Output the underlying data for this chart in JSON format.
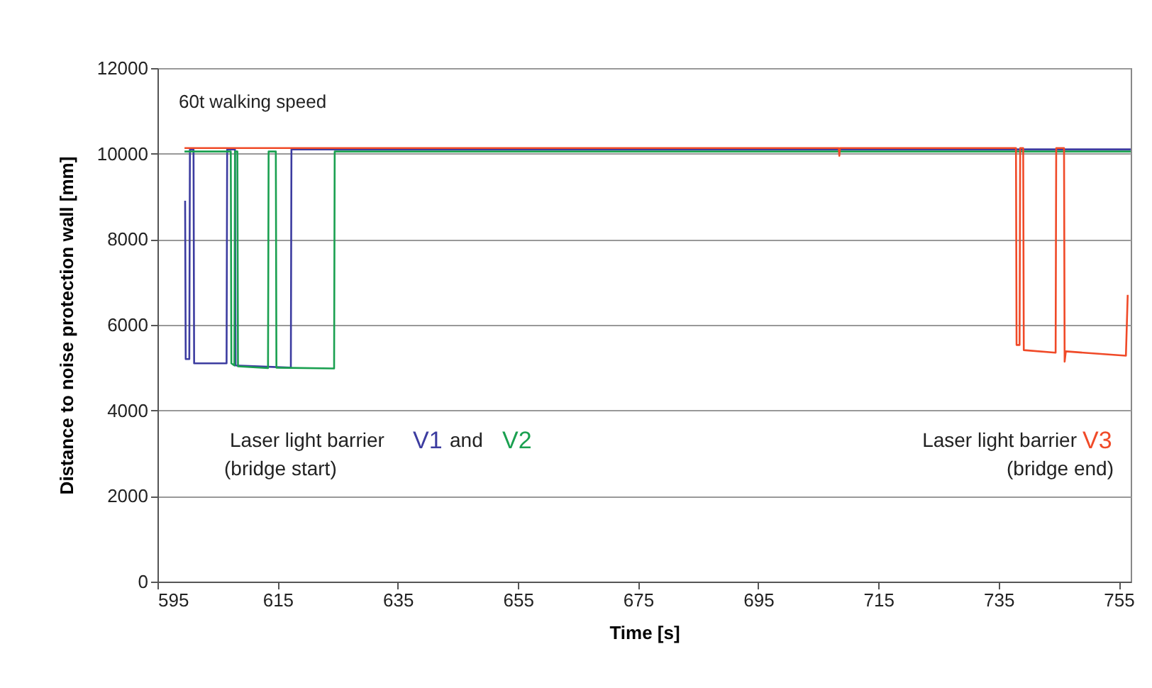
{
  "chart_data": {
    "type": "line",
    "xlabel": "Time  [s]",
    "ylabel": "Distance to noise protection wall [mm]",
    "annotations": [
      "60t walking speed",
      "Laser light barrier",
      "and",
      "(bridge start)",
      "Laser light barrier",
      "(bridge end)"
    ],
    "xlim": [
      595,
      757
    ],
    "xticks": [
      595,
      615,
      635,
      655,
      675,
      695,
      715,
      735,
      755
    ],
    "ylim": [
      0,
      12000
    ],
    "yticks": [
      0,
      2000,
      4000,
      6000,
      8000,
      10000,
      12000
    ],
    "grid": "y",
    "marker": "none",
    "line_style": "solid",
    "series": [
      {
        "name": "V1",
        "color": "#3c3ca0",
        "x": [
          599.6,
          599.7,
          600.3,
          600.4,
          601.0,
          601.1,
          606.5,
          606.6,
          607.9,
          608.0,
          617.2,
          617.3,
          757
        ],
        "values": [
          8900,
          5200,
          5200,
          10100,
          10100,
          5100,
          5100,
          10100,
          10100,
          5050,
          5000,
          10100,
          10100
        ]
      },
      {
        "name": "V2",
        "color": "#1aa050",
        "x": [
          599.5,
          607.2,
          607.3,
          607.8,
          607.9,
          608.3,
          608.4,
          613.4,
          613.5,
          614.7,
          614.8,
          624.4,
          624.5,
          757
        ],
        "values": [
          10050,
          10050,
          5100,
          5050,
          10050,
          10050,
          5030,
          4990,
          10050,
          10050,
          5000,
          4980,
          10050,
          10050
        ]
      },
      {
        "name": "V3",
        "color": "#f04a28",
        "x": [
          599.5,
          708.4,
          708.5,
          708.6,
          737.9,
          738.0,
          738.5,
          738.6,
          739.1,
          739.2,
          744.5,
          744.6,
          745.9,
          746.0,
          746.2,
          756.2,
          756.5
        ],
        "values": [
          10130,
          10130,
          9950,
          10130,
          10130,
          5530,
          5530,
          10130,
          10130,
          5410,
          5350,
          10130,
          10130,
          5140,
          5380,
          5280,
          6700
        ]
      }
    ]
  }
}
